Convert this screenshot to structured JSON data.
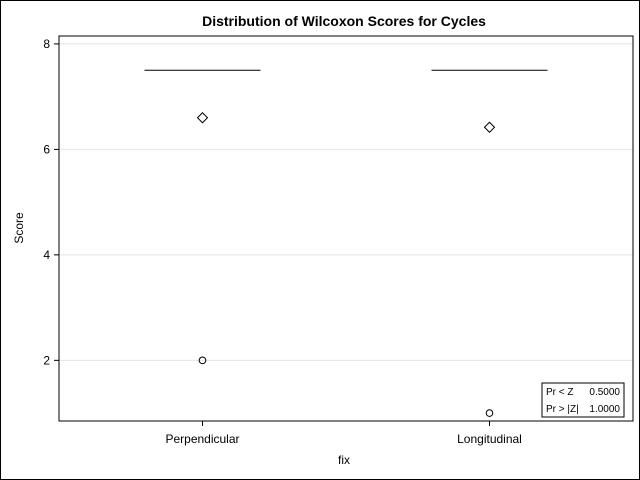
{
  "chart_data": {
    "type": "box",
    "title": "Distribution of Wilcoxon Scores for Cycles",
    "xlabel": "fix",
    "ylabel": "Score",
    "categories": [
      "Perpendicular",
      "Longitudinal"
    ],
    "ylim": [
      0.85,
      8.15
    ],
    "yticks": [
      2,
      4,
      6,
      8
    ],
    "grid": true,
    "series": [
      {
        "category": "Perpendicular",
        "box_line": 7.5,
        "mean": 6.6,
        "outliers": [
          2.0
        ]
      },
      {
        "category": "Longitudinal",
        "box_line": 7.5,
        "mean": 6.42,
        "outliers": [
          1.0
        ]
      }
    ],
    "inset": {
      "rows": [
        {
          "label": "Pr < Z",
          "value": "0.5000"
        },
        {
          "label": "Pr > |Z|",
          "value": "1.0000"
        }
      ]
    }
  }
}
